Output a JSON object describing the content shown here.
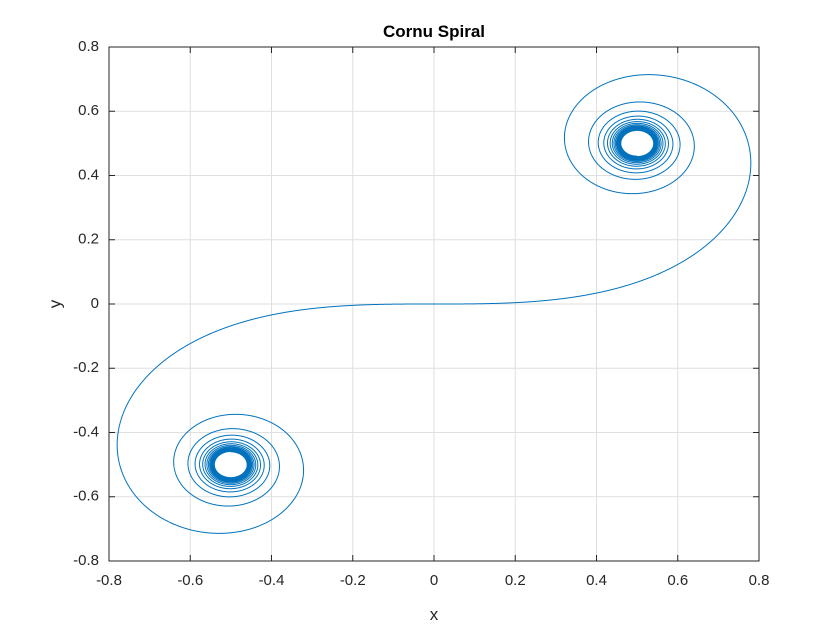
{
  "chart_data": {
    "type": "line",
    "title": "Cornu Spiral",
    "xlabel": "x",
    "ylabel": "y",
    "xlim": [
      -0.8,
      0.8
    ],
    "ylim": [
      -0.8,
      0.8
    ],
    "xticks": [
      "-0.8",
      "-0.6",
      "-0.4",
      "-0.2",
      "0",
      "0.2",
      "0.4",
      "0.6",
      "0.8"
    ],
    "yticks": [
      "-0.8",
      "-0.6",
      "-0.4",
      "-0.2",
      "0",
      "0.2",
      "0.4",
      "0.6",
      "0.8"
    ],
    "grid": true,
    "series": [
      {
        "color": "#0072BD",
        "curve": "cornu",
        "parameter_range": [
          -8,
          8
        ],
        "spiral_centers": [
          [
            0.5,
            0.5
          ],
          [
            -0.5,
            -0.5
          ]
        ]
      }
    ]
  }
}
